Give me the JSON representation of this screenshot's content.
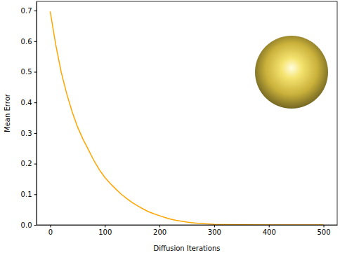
{
  "chart_data": {
    "type": "line",
    "x_label": "Diffusion Iterations",
    "y_label": "Mean Error",
    "x": [
      0,
      10,
      20,
      30,
      40,
      50,
      60,
      70,
      80,
      90,
      100,
      110,
      120,
      130,
      140,
      150,
      160,
      170,
      180,
      190,
      200,
      210,
      220,
      230,
      240,
      250,
      260,
      270,
      280,
      290,
      300,
      320,
      350,
      400,
      450,
      500
    ],
    "values": [
      0.697,
      0.59,
      0.5,
      0.43,
      0.37,
      0.32,
      0.28,
      0.245,
      0.21,
      0.18,
      0.155,
      0.135,
      0.117,
      0.1,
      0.086,
      0.073,
      0.062,
      0.052,
      0.043,
      0.036,
      0.03,
      0.024,
      0.019,
      0.015,
      0.012,
      0.009,
      0.007,
      0.005,
      0.004,
      0.003,
      0.002,
      0.001,
      0.0005,
      0.0002,
      0.0001,
      0.0001
    ],
    "color": "#ffa500",
    "xlim": [
      -25,
      525
    ],
    "xticks": [
      0,
      100,
      200,
      300,
      400,
      500
    ],
    "ylim": [
      0,
      0.73
    ],
    "yticks": [
      {
        "value": 0,
        "label": "0.0"
      },
      0.1,
      0.2,
      0.3,
      0.4,
      0.5,
      0.6,
      0.7
    ],
    "grid": false
  }
}
